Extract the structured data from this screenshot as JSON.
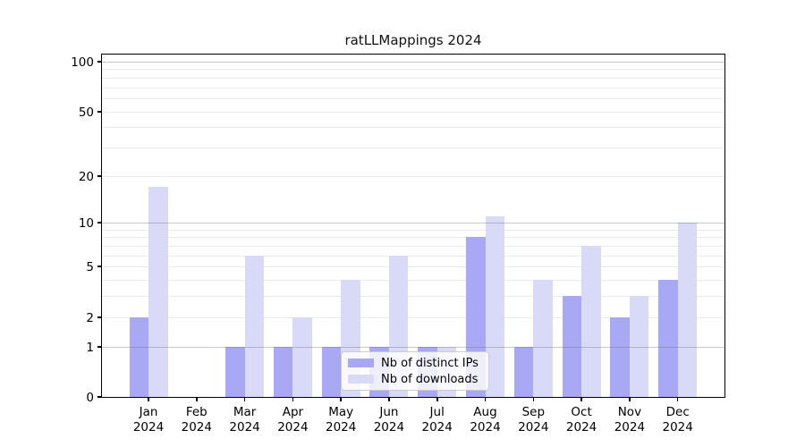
{
  "title": "ratLLMappings 2024",
  "chart_data": {
    "type": "bar",
    "title": "ratLLMappings 2024",
    "categories": [
      {
        "month": "Jan",
        "year": "2024"
      },
      {
        "month": "Feb",
        "year": "2024"
      },
      {
        "month": "Mar",
        "year": "2024"
      },
      {
        "month": "Apr",
        "year": "2024"
      },
      {
        "month": "May",
        "year": "2024"
      },
      {
        "month": "Jun",
        "year": "2024"
      },
      {
        "month": "Jul",
        "year": "2024"
      },
      {
        "month": "Aug",
        "year": "2024"
      },
      {
        "month": "Sep",
        "year": "2024"
      },
      {
        "month": "Oct",
        "year": "2024"
      },
      {
        "month": "Nov",
        "year": "2024"
      },
      {
        "month": "Dec",
        "year": "2024"
      }
    ],
    "series": [
      {
        "name": "Nb of distinct IPs",
        "color": "#a8a8f4",
        "values": [
          2,
          0,
          1,
          1,
          1,
          1,
          1,
          8,
          1,
          3,
          2,
          4
        ]
      },
      {
        "name": "Nb of downloads",
        "color": "#d9d9f8",
        "values": [
          17,
          0,
          6,
          2,
          4,
          6,
          1,
          11,
          4,
          7,
          3,
          10
        ]
      }
    ],
    "xlabel": "",
    "ylabel": "",
    "y_scale": "log1p",
    "ylim": [
      0,
      110
    ],
    "y_tick_labels": [
      "0",
      "1",
      "2",
      "5",
      "10",
      "20",
      "50",
      "100"
    ],
    "y_ticks": [
      0,
      1,
      2,
      5,
      10,
      20,
      50,
      100
    ],
    "y_major_gridlines": [
      1,
      10,
      100
    ],
    "y_minor_gridlines": [
      2,
      3,
      4,
      5,
      6,
      7,
      8,
      9,
      20,
      30,
      40,
      50,
      60,
      70,
      80,
      90
    ],
    "grid": "on",
    "legend_position": "lower center-left inside plot"
  },
  "legend": {
    "items": [
      {
        "label": "Nb of distinct IPs",
        "color": "#a8a8f4"
      },
      {
        "label": "Nb of downloads",
        "color": "#d9d9f8"
      }
    ]
  },
  "colors": {
    "bar_distinct_ips": "#a8a8f4",
    "bar_downloads": "#d9d9f8",
    "major_gridline": "#c9c9c9",
    "minor_gridline": "#ebebeb",
    "spine": "#000000",
    "background": "#ffffff"
  }
}
